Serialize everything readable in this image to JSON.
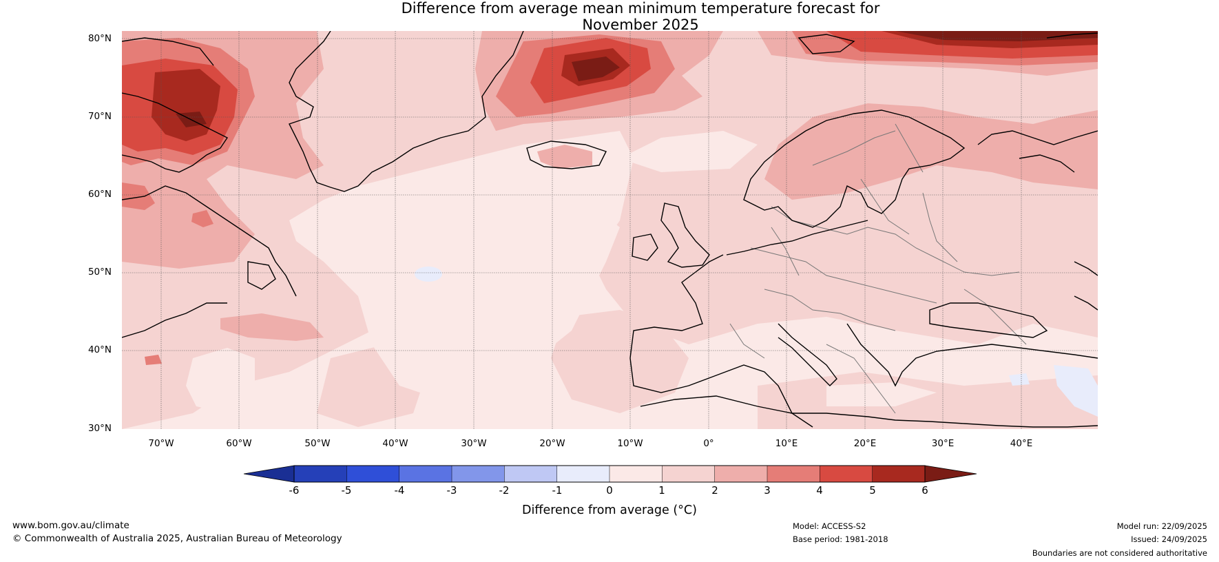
{
  "title": {
    "line1": "Difference from average mean minimum temperature forecast for",
    "line2": "November 2025"
  },
  "map": {
    "lat_labels": [
      "80°N",
      "70°N",
      "60°N",
      "50°N",
      "40°N",
      "30°N"
    ],
    "lon_labels": [
      "70°W",
      "60°W",
      "50°W",
      "40°W",
      "30°W",
      "20°W",
      "10°W",
      "0°",
      "10°E",
      "20°E",
      "30°E",
      "40°E"
    ]
  },
  "colorbar": {
    "ticks": [
      "-6",
      "-5",
      "-4",
      "-3",
      "-2",
      "-1",
      "0",
      "1",
      "2",
      "3",
      "4",
      "5",
      "6"
    ],
    "colors": [
      "#1a2f94",
      "#2540b8",
      "#2f4fd8",
      "#5a73e3",
      "#8296ea",
      "#bfc8f4",
      "#e8ecfb",
      "#fbe9e7",
      "#f5d3d1",
      "#eeaeab",
      "#e57d77",
      "#d84a41",
      "#a8291f",
      "#7a1c15"
    ],
    "label": "Difference from average (°C)"
  },
  "footer": {
    "website": "www.bom.gov.au/climate",
    "copyright": "© Commonwealth of Australia 2025, Australian Bureau of Meteorology",
    "model": "Model: ACCESS-S2",
    "base_period": "Base period: 1981-2018",
    "model_run": "Model run: 22/09/2025",
    "issued": "Issued: 24/09/2025",
    "disclaimer": "Boundaries are not considered authoritative"
  }
}
